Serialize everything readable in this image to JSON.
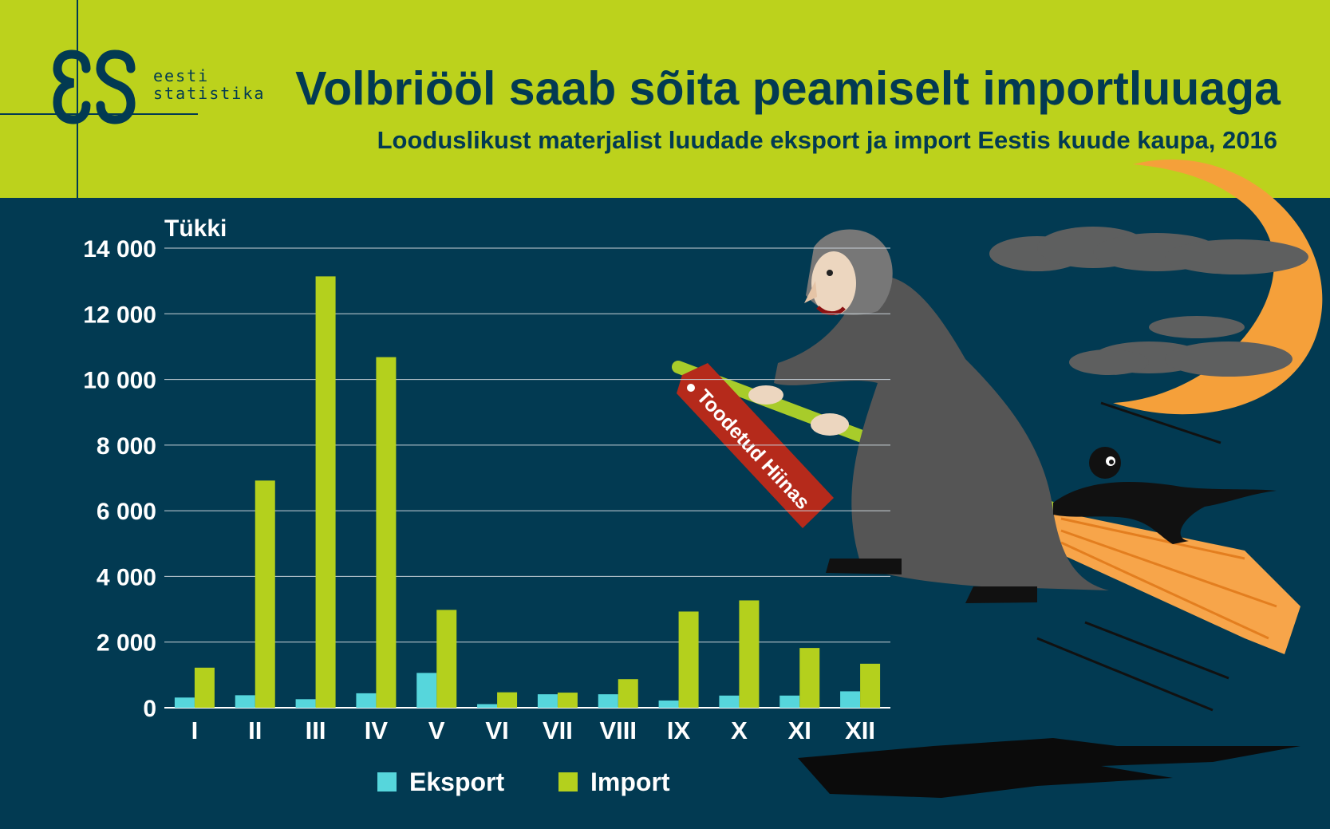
{
  "logo": {
    "line1": "eesti",
    "line2": "statistika"
  },
  "title": "Volbriööl saab sõita peamiselt importluuaga",
  "subtitle": "Looduslikust materjalist luudade eksport ja import Eestis kuude kaupa, 2016",
  "illustration": {
    "tag_text": "Toodetud Hiinas"
  },
  "colors": {
    "header_bg": "#bcd21c",
    "page_bg": "#023a52",
    "eksport": "#56d6dc",
    "import": "#b4d01d"
  },
  "chart_data": {
    "type": "bar",
    "ylabel": "Tükki",
    "ylim": [
      0,
      14000
    ],
    "yticks": [
      0,
      2000,
      4000,
      6000,
      8000,
      10000,
      12000,
      14000
    ],
    "ytick_labels": [
      "0",
      "2 000",
      "4 000",
      "6 000",
      "8 000",
      "10 000",
      "12 000",
      "14 000"
    ],
    "categories": [
      "I",
      "II",
      "III",
      "IV",
      "V",
      "VI",
      "VII",
      "VIII",
      "IX",
      "X",
      "XI",
      "XII"
    ],
    "grid": true,
    "legend_position": "bottom",
    "series": [
      {
        "name": "Eksport",
        "color": "#56d6dc",
        "values": [
          310,
          380,
          260,
          440,
          1060,
          110,
          410,
          410,
          220,
          370,
          370,
          500
        ]
      },
      {
        "name": "Import",
        "color": "#b4d01d",
        "values": [
          1220,
          6920,
          13140,
          10680,
          2980,
          470,
          460,
          870,
          2930,
          3270,
          1820,
          1340
        ]
      }
    ]
  }
}
